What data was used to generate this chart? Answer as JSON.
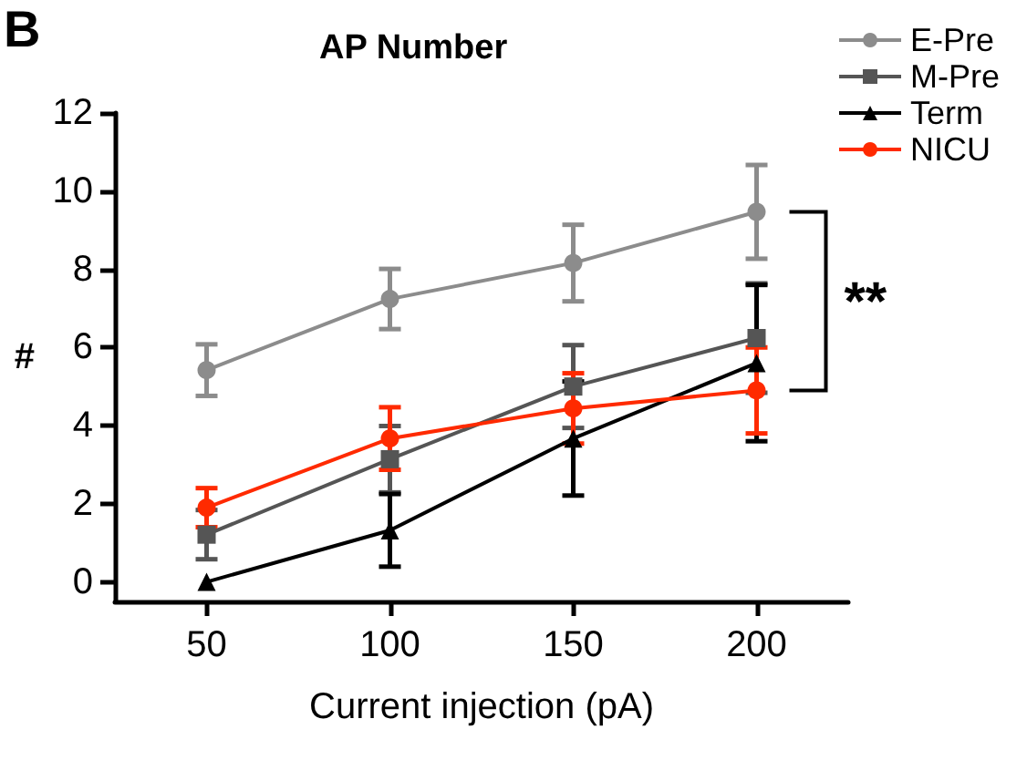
{
  "chart_data": {
    "type": "line",
    "title": "AP Number",
    "xlabel": "Current injection (pA)",
    "ylabel": "#",
    "annotations": [
      "B",
      "**"
    ],
    "x": [
      50,
      100,
      150,
      200
    ],
    "series": [
      {
        "name": "E-Pre",
        "color": "#8c8c8c",
        "marker": "circle",
        "values": [
          5.42,
          7.24,
          8.16,
          9.47
        ],
        "errors": [
          0.66,
          0.77,
          0.98,
          1.2
        ]
      },
      {
        "name": "M-Pre",
        "color": "#555555",
        "marker": "square",
        "values": [
          1.21,
          3.14,
          5.0,
          6.24
        ],
        "errors": [
          0.63,
          0.85,
          1.06,
          1.4
        ]
      },
      {
        "name": "Term",
        "color": "#000000",
        "marker": "triangle",
        "values": [
          0,
          1.32,
          3.67,
          5.6
        ],
        "errors": [
          null,
          0.93,
          1.46,
          2.0
        ]
      },
      {
        "name": "NICU",
        "color": "#ff2a00",
        "marker": "circle",
        "values": [
          1.9,
          3.67,
          4.44,
          4.9
        ],
        "errors": [
          0.5,
          0.8,
          0.9,
          1.1
        ]
      }
    ],
    "xlim": [
      25,
      225
    ],
    "xticks": [
      50,
      100,
      150,
      200
    ],
    "ylim": [
      -0.5,
      12
    ],
    "yticks": [
      0,
      2,
      4,
      6,
      8,
      10,
      12
    ],
    "grid": false,
    "legend": "top right",
    "line_style": "solid"
  }
}
